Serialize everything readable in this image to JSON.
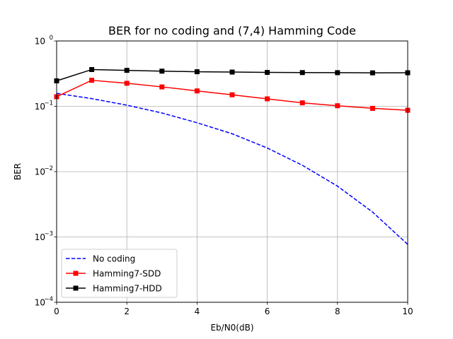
{
  "chart_data": {
    "type": "line",
    "title": "BER for no coding and (7,4) Hamming Code",
    "xlabel": "Eb/N0(dB)",
    "ylabel": "BER",
    "xlim": [
      0,
      10
    ],
    "ylim": [
      0.0001,
      1
    ],
    "yscale": "log",
    "grid": true,
    "legend_position": "lower-left",
    "xticks": [
      {
        "value": 0,
        "label": "0"
      },
      {
        "value": 2,
        "label": "2"
      },
      {
        "value": 4,
        "label": "4"
      },
      {
        "value": 6,
        "label": "6"
      },
      {
        "value": 8,
        "label": "8"
      },
      {
        "value": 10,
        "label": "10"
      }
    ],
    "yticks": [
      {
        "value": 0.0001,
        "base": "10",
        "exp": "−4"
      },
      {
        "value": 0.001,
        "base": "10",
        "exp": "−3"
      },
      {
        "value": 0.01,
        "base": "10",
        "exp": "−2"
      },
      {
        "value": 0.1,
        "base": "10",
        "exp": "−1"
      },
      {
        "value": 1,
        "base": "10",
        "exp": "0"
      }
    ],
    "series": [
      {
        "name": "No coding",
        "color": "#0000ff",
        "style": "dashed",
        "marker": "none",
        "x": [
          0,
          1,
          2,
          3,
          4,
          5,
          6,
          7,
          8,
          9,
          10
        ],
        "y": [
          0.158,
          0.131,
          0.104,
          0.079,
          0.056,
          0.038,
          0.023,
          0.0125,
          0.006,
          0.0024,
          0.00077
        ]
      },
      {
        "name": "Hamming7-SDD",
        "color": "#ff0000",
        "style": "solid",
        "marker": "square",
        "x": [
          0,
          1,
          2,
          3,
          4,
          5,
          6,
          7,
          8,
          9,
          10
        ],
        "y": [
          0.14,
          0.25,
          0.225,
          0.198,
          0.172,
          0.15,
          0.13,
          0.113,
          0.102,
          0.093,
          0.087
        ]
      },
      {
        "name": "Hamming7-HDD",
        "color": "#000000",
        "style": "solid",
        "marker": "square",
        "x": [
          0,
          1,
          2,
          3,
          4,
          5,
          6,
          7,
          8,
          9,
          10
        ],
        "y": [
          0.245,
          0.365,
          0.355,
          0.345,
          0.338,
          0.334,
          0.33,
          0.328,
          0.327,
          0.325,
          0.326
        ]
      }
    ]
  }
}
